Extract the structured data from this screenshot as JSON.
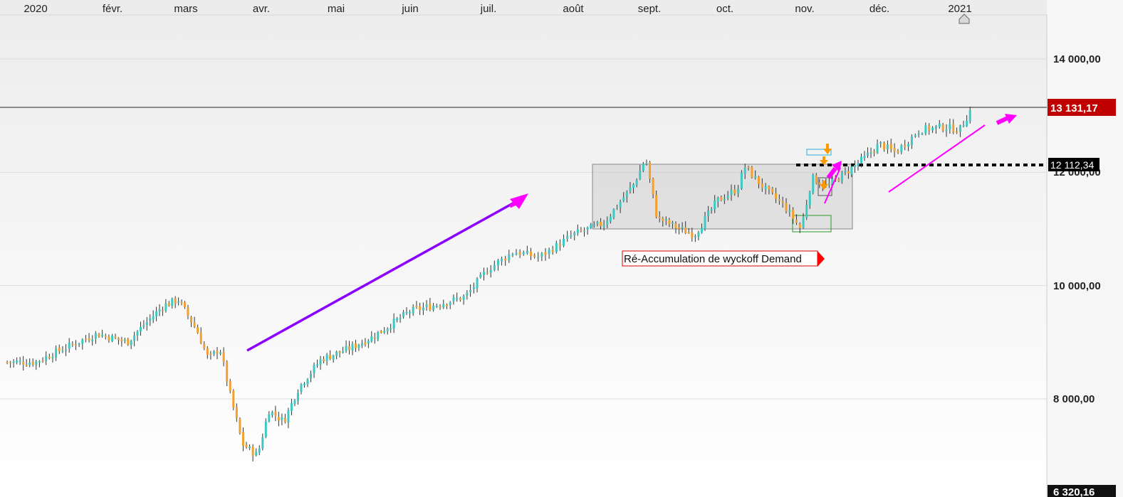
{
  "chart_data": {
    "type": "candlestick",
    "x_axis": {
      "labels": [
        "2020",
        "févr.",
        "mars",
        "avr.",
        "mai",
        "juin",
        "juil.",
        "août",
        "sept.",
        "oct.",
        "nov.",
        "déc.",
        "2021"
      ]
    },
    "y_axis": {
      "tick_labels": [
        "14 000,00",
        "12 000,00",
        "10 000,00",
        "8 000,00"
      ],
      "tick_values": [
        14000,
        12000,
        10000,
        8000
      ],
      "range": [
        6290,
        14800
      ],
      "grid": true
    },
    "last_price": {
      "label": "13 131,17",
      "value": 13131.17,
      "color": "#c00000"
    },
    "level": {
      "label": "12 112,34",
      "value": 12112.34,
      "color": "#000000"
    },
    "bottom_label": {
      "label": "6 320,16",
      "value": 6320.16
    },
    "annotation": {
      "text": "Ré-Accumulation de wyckoff  Demand",
      "color": "#dd0000"
    },
    "colors": {
      "up": "#3cc9c3",
      "down": "#f0a030",
      "wick": "#333333",
      "arrow_main": "#8b00ff",
      "arrow_pink": "#ff00ff"
    },
    "anchors": [
      {
        "t": 0.0,
        "v": 8650
      },
      {
        "t": 0.3,
        "v": 8850
      },
      {
        "t": 0.8,
        "v": 9150
      },
      {
        "t": 1.2,
        "v": 9000
      },
      {
        "t": 1.5,
        "v": 9400
      },
      {
        "t": 1.7,
        "v": 9650
      },
      {
        "t": 1.9,
        "v": 9750
      },
      {
        "t": 2.15,
        "v": 9200
      },
      {
        "t": 2.3,
        "v": 8700
      },
      {
        "t": 2.45,
        "v": 8900
      },
      {
        "t": 2.6,
        "v": 8000
      },
      {
        "t": 2.75,
        "v": 7200
      },
      {
        "t": 2.95,
        "v": 7000
      },
      {
        "t": 3.1,
        "v": 7800
      },
      {
        "t": 3.3,
        "v": 7600
      },
      {
        "t": 3.5,
        "v": 8200
      },
      {
        "t": 3.8,
        "v": 8700
      },
      {
        "t": 4.2,
        "v": 8900
      },
      {
        "t": 4.5,
        "v": 9100
      },
      {
        "t": 5.0,
        "v": 9550
      },
      {
        "t": 5.3,
        "v": 9650
      },
      {
        "t": 5.7,
        "v": 9800
      },
      {
        "t": 6.0,
        "v": 10300
      },
      {
        "t": 6.3,
        "v": 10600
      },
      {
        "t": 6.6,
        "v": 10500
      },
      {
        "t": 7.0,
        "v": 10900
      },
      {
        "t": 7.4,
        "v": 11100
      },
      {
        "t": 7.8,
        "v": 11800
      },
      {
        "t": 7.95,
        "v": 12250
      },
      {
        "t": 8.1,
        "v": 11200
      },
      {
        "t": 8.4,
        "v": 11000
      },
      {
        "t": 8.6,
        "v": 10900
      },
      {
        "t": 8.9,
        "v": 11500
      },
      {
        "t": 9.15,
        "v": 11700
      },
      {
        "t": 9.25,
        "v": 12100
      },
      {
        "t": 9.5,
        "v": 11700
      },
      {
        "t": 9.75,
        "v": 11400
      },
      {
        "t": 9.95,
        "v": 11000
      },
      {
        "t": 10.1,
        "v": 11900
      },
      {
        "t": 10.3,
        "v": 11750
      },
      {
        "t": 10.5,
        "v": 11950
      },
      {
        "t": 10.8,
        "v": 12250
      },
      {
        "t": 11.0,
        "v": 12500
      },
      {
        "t": 11.2,
        "v": 12350
      },
      {
        "t": 11.5,
        "v": 12750
      },
      {
        "t": 11.8,
        "v": 12800
      },
      {
        "t": 12.0,
        "v": 12750
      },
      {
        "t": 12.15,
        "v": 13131
      }
    ]
  }
}
